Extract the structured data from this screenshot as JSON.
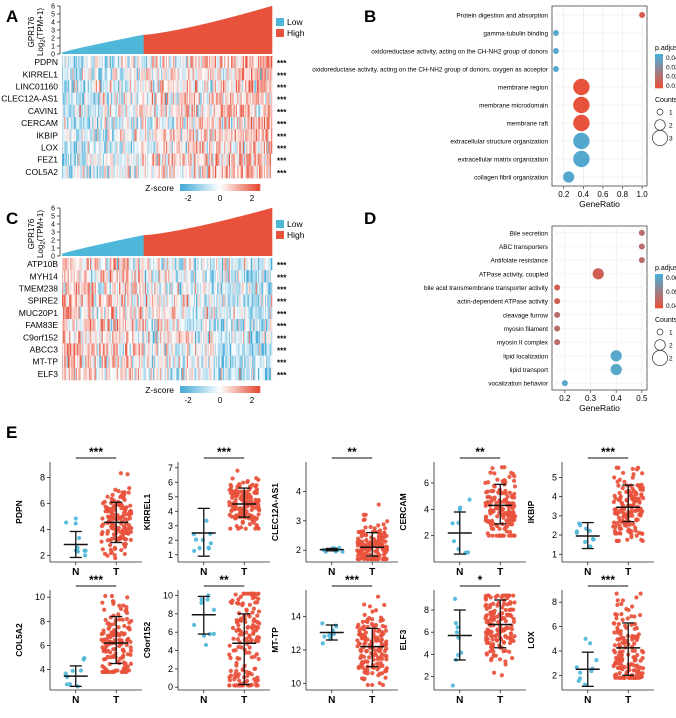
{
  "panels": {
    "A": "A",
    "B": "B",
    "C": "C",
    "D": "D",
    "E": "E"
  },
  "chart_data": [
    {
      "id": "A",
      "type": "heatmap",
      "top_bar": {
        "ylabel_line1": "GPR176",
        "ylabel_line2": "Log",
        "ylabel_sub": "2",
        "ylabel_tail": "(TPM+1)",
        "yticks": [
          "0",
          "1",
          "2",
          "3",
          "4",
          "5",
          "6"
        ],
        "ylim": [
          0,
          6
        ],
        "low_n": 70,
        "high_n": 110,
        "low_range": [
          0.2,
          2.4
        ],
        "high_range": [
          2.4,
          6.0
        ]
      },
      "legend": [
        {
          "label": "Low",
          "color": "#4fb7d9"
        },
        {
          "label": "High",
          "color": "#e8513b"
        }
      ],
      "rows": [
        "PDPN",
        "KIRREL1",
        "LINC01160",
        "CLEC12A-AS1",
        "CAVIN1",
        "CERCAM",
        "IKBIP",
        "LOX",
        "FEZ1",
        "COL5A2"
      ],
      "row_sig": "***",
      "zscore_label": "Z-score",
      "zscore_ticks": [
        "-2",
        "0",
        "2"
      ],
      "high_bias": 1
    },
    {
      "id": "B",
      "type": "scatter",
      "terms": [
        {
          "name": "Protein digestion and absorption",
          "gene_ratio": 1.0,
          "count": 1,
          "p": 0.01
        },
        {
          "name": "gamma-tubulin binding",
          "gene_ratio": 0.12,
          "count": 1,
          "p": 0.045
        },
        {
          "name": "oxidoreductase activity, acting on the CH-NH2 group of donors",
          "gene_ratio": 0.12,
          "count": 1,
          "p": 0.045
        },
        {
          "name": "oxidoreductase activity, acting on the CH-NH2 group of donors, oxygen as acceptor",
          "gene_ratio": 0.12,
          "count": 1,
          "p": 0.045
        },
        {
          "name": "membrane region",
          "gene_ratio": 0.38,
          "count": 3,
          "p": 0.005
        },
        {
          "name": "membrane microdomain",
          "gene_ratio": 0.38,
          "count": 3,
          "p": 0.005
        },
        {
          "name": "membrane raft",
          "gene_ratio": 0.38,
          "count": 3,
          "p": 0.005
        },
        {
          "name": "extracellular structure organization",
          "gene_ratio": 0.38,
          "count": 3,
          "p": 0.045
        },
        {
          "name": "extracellular matrix organization",
          "gene_ratio": 0.38,
          "count": 3,
          "p": 0.045
        },
        {
          "name": "collagen fibril organization",
          "gene_ratio": 0.25,
          "count": 2,
          "p": 0.045
        }
      ],
      "xlabel": "GeneRatio",
      "xticks": [
        "0.2",
        "0.4",
        "0.6",
        "0.8",
        "1.0"
      ],
      "xlim": [
        0.08,
        1.05
      ],
      "color_title": "p.adjust",
      "color_ticks": [
        "0.04",
        "0.03",
        "0.02",
        "0.01"
      ],
      "color_range": [
        0.005,
        0.048
      ],
      "size_title": "Counts",
      "size_ticks": [
        "1",
        "2",
        "3"
      ]
    },
    {
      "id": "C",
      "type": "heatmap",
      "top_bar": {
        "ylabel_line1": "GPR176",
        "ylabel_line2": "Log",
        "ylabel_sub": "2",
        "ylabel_tail": "(TPM+1)",
        "yticks": [
          "0",
          "1",
          "2",
          "3",
          "4",
          "5",
          "6"
        ],
        "ylim": [
          0,
          6
        ],
        "low_n": 70,
        "high_n": 110,
        "low_range": [
          0.3,
          2.6
        ],
        "high_range": [
          2.6,
          6.0
        ]
      },
      "legend": [
        {
          "label": "Low",
          "color": "#4fb7d9"
        },
        {
          "label": "High",
          "color": "#e8513b"
        }
      ],
      "rows": [
        "ATP10B",
        "MYH14",
        "TMEM238",
        "SPIRE2",
        "MUC20P1",
        "FAM83E",
        "C9orf152",
        "ABCC3",
        "MT-TP",
        "ELF3"
      ],
      "row_sig": "***",
      "zscore_label": "Z-score",
      "zscore_ticks": [
        "-2",
        "0",
        "2"
      ],
      "high_bias": -1
    },
    {
      "id": "D",
      "type": "scatter",
      "terms": [
        {
          "name": "Bile secretion",
          "gene_ratio": 0.5,
          "count": 1,
          "p": 0.045
        },
        {
          "name": "ABC transporters",
          "gene_ratio": 0.5,
          "count": 1,
          "p": 0.045
        },
        {
          "name": "Antifolate resistance",
          "gene_ratio": 0.5,
          "count": 1,
          "p": 0.045
        },
        {
          "name": "ATPase activity, coupled",
          "gene_ratio": 0.33,
          "count": 2,
          "p": 0.04
        },
        {
          "name": "bile acid transmembrane transporter activity",
          "gene_ratio": 0.17,
          "count": 1,
          "p": 0.04
        },
        {
          "name": "actin-dependent ATPase activity",
          "gene_ratio": 0.17,
          "count": 1,
          "p": 0.04
        },
        {
          "name": "cleavage furrow",
          "gene_ratio": 0.17,
          "count": 1,
          "p": 0.045
        },
        {
          "name": "myosin filament",
          "gene_ratio": 0.17,
          "count": 1,
          "p": 0.045
        },
        {
          "name": "myosin II complex",
          "gene_ratio": 0.17,
          "count": 1,
          "p": 0.045
        },
        {
          "name": "lipid localization",
          "gene_ratio": 0.4,
          "count": 2,
          "p": 0.065
        },
        {
          "name": "lipid transport",
          "gene_ratio": 0.4,
          "count": 2,
          "p": 0.065
        },
        {
          "name": "vocalization behavior",
          "gene_ratio": 0.2,
          "count": 1,
          "p": 0.065
        }
      ],
      "xlabel": "GeneRatio",
      "xticks": [
        "0.2",
        "0.3",
        "0.4",
        "0.5"
      ],
      "xlim": [
        0.15,
        0.52
      ],
      "color_title": "p.adjust",
      "color_ticks": [
        "0.06",
        "0.05",
        "0.04"
      ],
      "color_range": [
        0.035,
        0.068
      ],
      "size_title": "Counts",
      "size_ticks": [
        "1",
        "2",
        "2"
      ]
    },
    {
      "id": "E",
      "type": "scatter",
      "groups": [
        "N",
        "T"
      ],
      "n_counts": [
        10,
        150
      ],
      "plots": [
        {
          "gene": "PDPN",
          "sig": "***",
          "yticks": [
            2,
            4,
            6,
            8
          ],
          "ylim": [
            1.5,
            9.2
          ],
          "N": {
            "mean": 2.85,
            "lo": 1.85,
            "hi": 3.85,
            "min": 2.0,
            "max": 6.3
          },
          "T": {
            "mean": 4.55,
            "lo": 3.0,
            "hi": 6.1,
            "min": 1.8,
            "max": 8.7
          }
        },
        {
          "gene": "KIRREL1",
          "sig": "***",
          "yticks": [
            1,
            2,
            3,
            4,
            5,
            6,
            7
          ],
          "ylim": [
            0.5,
            7.4
          ],
          "N": {
            "mean": 2.5,
            "lo": 0.9,
            "hi": 4.2,
            "min": 0.8,
            "max": 5.7
          },
          "T": {
            "mean": 4.5,
            "lo": 3.6,
            "hi": 5.6,
            "min": 2.8,
            "max": 6.8
          }
        },
        {
          "gene": "CLEC12A-AS1",
          "sig": "**",
          "yticks": [
            2,
            3,
            4
          ],
          "ylim": [
            1.6,
            5.0
          ],
          "N": {
            "mean": 2.02,
            "lo": 1.98,
            "hi": 2.06,
            "min": 1.95,
            "max": 2.12
          },
          "T": {
            "mean": 2.1,
            "lo": 1.8,
            "hi": 2.6,
            "min": 1.7,
            "max": 4.8
          }
        },
        {
          "gene": "CERCAM",
          "sig": "**",
          "yticks": [
            2,
            4,
            6
          ],
          "ylim": [
            0.0,
            7.6
          ],
          "N": {
            "mean": 2.2,
            "lo": 0.6,
            "hi": 3.8,
            "min": 0.7,
            "max": 6.0
          },
          "T": {
            "mean": 4.3,
            "lo": 2.9,
            "hi": 5.9,
            "min": 2.0,
            "max": 7.2
          }
        },
        {
          "gene": "IKBIP",
          "sig": "***",
          "yticks": [
            1,
            2,
            3,
            4,
            5
          ],
          "ylim": [
            0.6,
            5.8
          ],
          "N": {
            "mean": 1.95,
            "lo": 1.3,
            "hi": 2.65,
            "min": 1.0,
            "max": 3.0
          },
          "T": {
            "mean": 3.45,
            "lo": 2.7,
            "hi": 4.6,
            "min": 1.7,
            "max": 5.5
          }
        },
        {
          "gene": "COL5A2",
          "sig": "***",
          "yticks": [
            4,
            6,
            8,
            10
          ],
          "ylim": [
            2.3,
            10.6
          ],
          "N": {
            "mean": 3.45,
            "lo": 2.6,
            "hi": 4.3,
            "min": 2.6,
            "max": 7.5
          },
          "T": {
            "mean": 6.2,
            "lo": 4.5,
            "hi": 8.4,
            "min": 3.8,
            "max": 10.1
          }
        },
        {
          "gene": "C9orf152",
          "sig": "**",
          "yticks": [
            0,
            2,
            4,
            6,
            8,
            10
          ],
          "ylim": [
            -0.3,
            10.6
          ],
          "N": {
            "mean": 7.9,
            "lo": 5.8,
            "hi": 9.9,
            "min": 3.5,
            "max": 10.0
          },
          "T": {
            "mean": 4.8,
            "lo": 0.3,
            "hi": 8.0,
            "min": 0.2,
            "max": 10.2
          }
        },
        {
          "gene": "MT-TP",
          "sig": "***",
          "yticks": [
            10,
            12,
            14
          ],
          "ylim": [
            9.6,
            15.6
          ],
          "N": {
            "mean": 13.05,
            "lo": 12.6,
            "hi": 13.5,
            "min": 12.4,
            "max": 13.6
          },
          "T": {
            "mean": 12.2,
            "lo": 11.0,
            "hi": 13.3,
            "min": 9.9,
            "max": 15.2
          }
        },
        {
          "gene": "ELF3",
          "sig": "*",
          "yticks": [
            2,
            4,
            6,
            8
          ],
          "ylim": [
            0.8,
            9.8
          ],
          "N": {
            "mean": 5.7,
            "lo": 3.5,
            "hi": 8.0,
            "min": 1.2,
            "max": 9.0
          },
          "T": {
            "mean": 6.7,
            "lo": 4.6,
            "hi": 8.9,
            "min": 1.0,
            "max": 9.3
          }
        },
        {
          "gene": "LOX",
          "sig": "***",
          "yticks": [
            2,
            4,
            6,
            8
          ],
          "ylim": [
            0.8,
            9.0
          ],
          "N": {
            "mean": 2.5,
            "lo": 1.1,
            "hi": 3.9,
            "min": 1.0,
            "max": 5.0
          },
          "T": {
            "mean": 4.25,
            "lo": 2.0,
            "hi": 6.3,
            "min": 1.8,
            "max": 8.7
          }
        }
      ]
    }
  ]
}
